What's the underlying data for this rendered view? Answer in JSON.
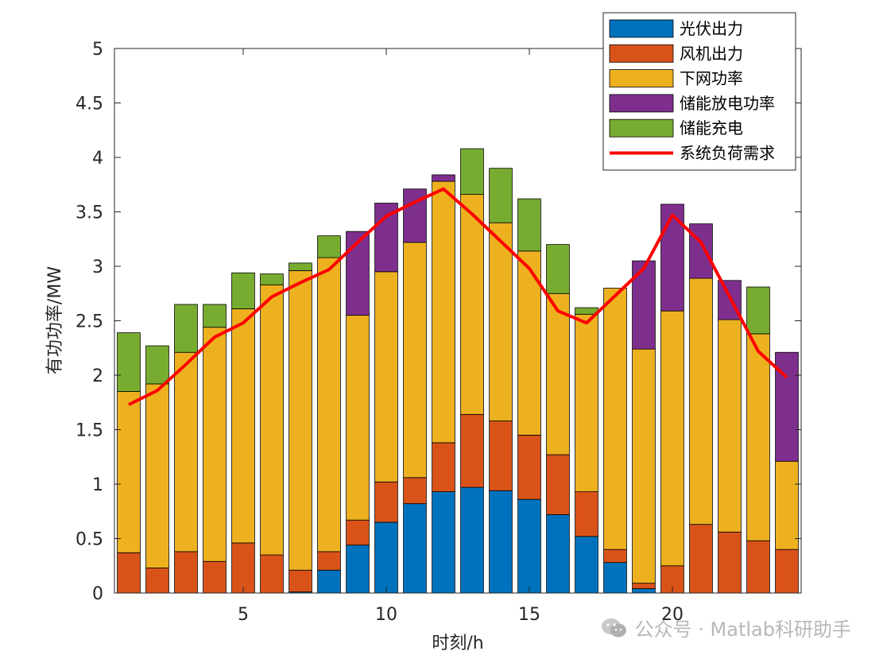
{
  "chart_data": {
    "type": "bar",
    "stacked": true,
    "xlabel": "时刻/h",
    "ylabel": "有功功率/MW",
    "ylim": [
      0,
      5
    ],
    "yticks": [
      "0",
      "0.5",
      "1",
      "1.5",
      "2",
      "2.5",
      "3",
      "3.5",
      "4",
      "4.5",
      "5"
    ],
    "xticks": [
      5,
      10,
      15,
      20
    ],
    "x": [
      1,
      2,
      3,
      4,
      5,
      6,
      7,
      8,
      9,
      10,
      11,
      12,
      13,
      14,
      15,
      16,
      17,
      18,
      19,
      20,
      21,
      22,
      23,
      24
    ],
    "series": [
      {
        "name": "光伏出力",
        "color": "#0072BD",
        "values": [
          0,
          0,
          0,
          0,
          0,
          0,
          0.01,
          0.21,
          0.44,
          0.65,
          0.82,
          0.93,
          0.97,
          0.94,
          0.86,
          0.72,
          0.52,
          0.28,
          0.04,
          0,
          0,
          0,
          0,
          0
        ]
      },
      {
        "name": "风机出力",
        "color": "#D95319",
        "values": [
          0.37,
          0.23,
          0.38,
          0.29,
          0.46,
          0.35,
          0.2,
          0.17,
          0.23,
          0.37,
          0.24,
          0.45,
          0.67,
          0.64,
          0.59,
          0.55,
          0.41,
          0.12,
          0.05,
          0.25,
          0.63,
          0.56,
          0.48,
          0.4
        ]
      },
      {
        "name": "下网功率",
        "color": "#EDB120",
        "values": [
          1.48,
          1.69,
          1.83,
          2.15,
          2.15,
          2.48,
          2.75,
          2.7,
          1.88,
          1.93,
          2.16,
          2.4,
          2.02,
          1.82,
          1.69,
          1.48,
          1.63,
          2.4,
          2.15,
          2.34,
          2.26,
          1.95,
          1.9,
          0.81
        ]
      },
      {
        "name": "储能放电功率",
        "color": "#7E2F8E",
        "values": [
          0,
          0,
          0,
          0,
          0,
          0,
          0,
          0,
          0.77,
          0.63,
          0.49,
          0.06,
          0,
          0,
          0,
          0,
          0,
          0,
          0.81,
          0.98,
          0.5,
          0.36,
          0,
          1.0
        ]
      },
      {
        "name": "储能充电",
        "color": "#77AC30",
        "values": [
          0.54,
          0.35,
          0.44,
          0.21,
          0.33,
          0.1,
          0.07,
          0.2,
          0,
          0,
          0,
          0,
          0.42,
          0.5,
          0.48,
          0.45,
          0.06,
          0,
          0,
          0,
          0,
          0,
          0.43,
          0
        ]
      }
    ],
    "line": {
      "name": "系统负荷需求",
      "color": "#FF0000",
      "values": [
        1.73,
        1.86,
        2.1,
        2.35,
        2.48,
        2.72,
        2.85,
        2.97,
        3.22,
        3.46,
        3.59,
        3.71,
        3.48,
        3.23,
        2.98,
        2.59,
        2.48,
        2.73,
        2.98,
        3.47,
        3.22,
        2.72,
        2.22,
        1.98
      ]
    },
    "legend_position": "top-right"
  },
  "watermark": {
    "text": "公众号 · Matlab科研助手"
  }
}
